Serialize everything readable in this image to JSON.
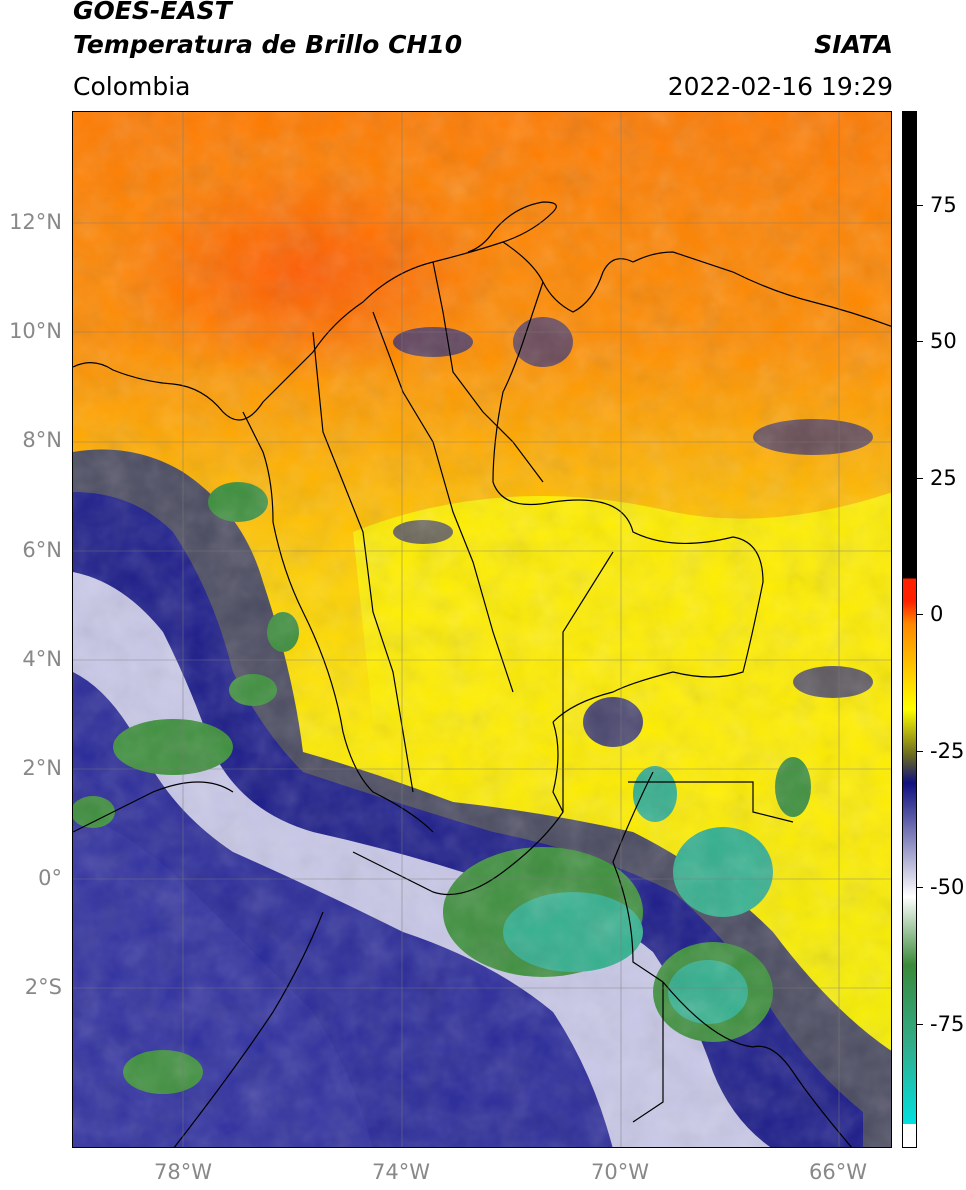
{
  "header": {
    "satellite": "GOES-EAST",
    "product": "Temperatura de Brillo CH10",
    "region": "Colombia",
    "agency": "SIATA",
    "datetime": "2022-02-16 19:29"
  },
  "map": {
    "lat_labels": [
      "12°N",
      "10°N",
      "8°N",
      "6°N",
      "4°N",
      "2°N",
      "0°",
      "2°S"
    ],
    "lon_labels": [
      "78°W",
      "74°W",
      "70°W",
      "66°W"
    ],
    "lon_range": [
      -80,
      -65
    ],
    "lat_range": [
      -4.8,
      14.2
    ],
    "gridlines": true
  },
  "colorbar": {
    "ticks": [
      "75",
      "50",
      "25",
      "0",
      "-25",
      "-50",
      "-75"
    ],
    "tick_values": [
      75,
      50,
      25,
      0,
      -25,
      -50,
      -75
    ],
    "range": [
      -92,
      90
    ],
    "colors": {
      "hot": "#000000",
      "warm_red": "#ff2000",
      "orange": "#ff8800",
      "yellow": "#ffff00",
      "olive": "#6b6b20",
      "navy": "#101080",
      "white": "#ffffff",
      "green": "#3a8a3a",
      "teal": "#30b090",
      "cyan": "#00e0e0"
    }
  }
}
